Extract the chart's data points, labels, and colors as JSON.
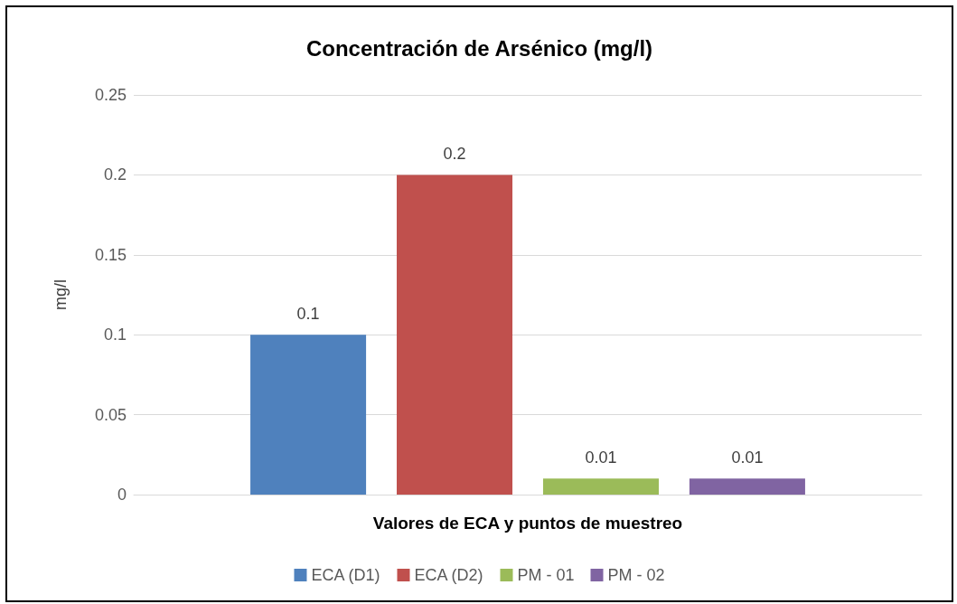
{
  "chart_data": {
    "type": "bar",
    "title": "Concentración de Arsénico (mg/l)",
    "xlabel": "Valores de ECA y puntos de muestreo",
    "ylabel": "mg/l",
    "categories": [
      null
    ],
    "series": [
      {
        "name": "ECA (D1)",
        "color": "#4f81bd",
        "values": [
          0.1
        ]
      },
      {
        "name": "ECA (D2)",
        "color": "#c0504d",
        "values": [
          0.2
        ]
      },
      {
        "name": "PM - 01",
        "color": "#9bbb59",
        "values": [
          0.01
        ]
      },
      {
        "name": "PM - 02",
        "color": "#8064a2",
        "values": [
          0.01
        ]
      }
    ],
    "ylim": [
      0,
      0.25
    ],
    "yticks": [
      0,
      0.05,
      0.1,
      0.15,
      0.2,
      0.25
    ],
    "grid": "y",
    "legend": "bottom",
    "data_labels": true
  }
}
